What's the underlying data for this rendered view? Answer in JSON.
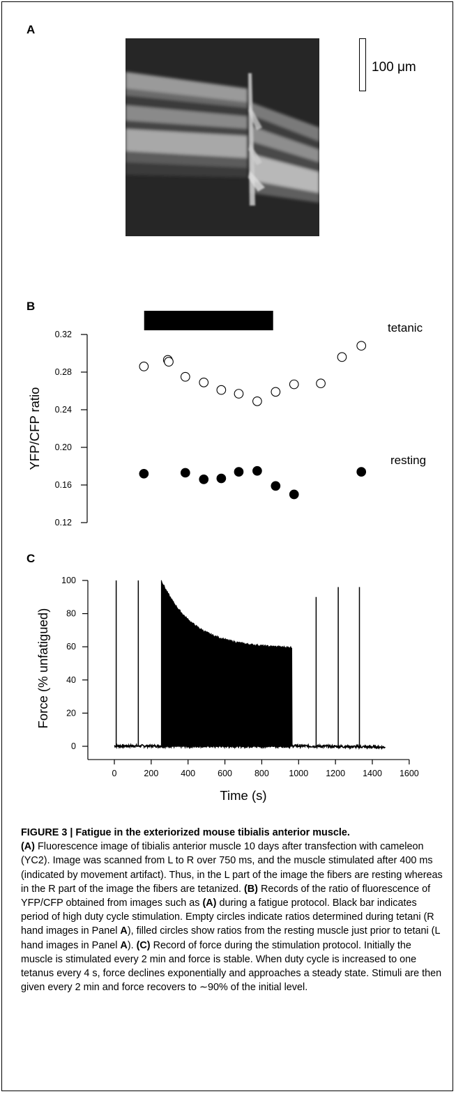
{
  "panels": {
    "a": {
      "letter": "A",
      "scale_bar_label": "100 μm"
    },
    "b": {
      "letter": "B",
      "annotation_tetanic": "tetanic",
      "annotation_resting": "resting"
    },
    "c": {
      "letter": "C"
    }
  },
  "chart_data": [
    {
      "panel": "B",
      "type": "scatter",
      "ylabel": "YFP/CFP ratio",
      "ylim": [
        0.12,
        0.32
      ],
      "yticks": [
        "0.12",
        "0.16",
        "0.20",
        "0.24",
        "0.28",
        "0.32"
      ],
      "stimulation_bar": {
        "x_start": 260,
        "x_end": 960,
        "fill": "#000000"
      },
      "series": [
        {
          "name": "tetanic",
          "marker": "empty-circle",
          "points": [
            [
              130,
              0.286
            ],
            [
              260,
              0.293
            ],
            [
              265,
              0.291
            ],
            [
              355,
              0.275
            ],
            [
              455,
              0.269
            ],
            [
              550,
              0.261
            ],
            [
              645,
              0.257
            ],
            [
              745,
              0.249
            ],
            [
              845,
              0.259
            ],
            [
              945,
              0.267
            ],
            [
              1090,
              0.268
            ],
            [
              1205,
              0.296
            ],
            [
              1310,
              0.308
            ]
          ]
        },
        {
          "name": "resting",
          "marker": "filled-circle",
          "points": [
            [
              130,
              0.172
            ],
            [
              355,
              0.173
            ],
            [
              455,
              0.166
            ],
            [
              550,
              0.167
            ],
            [
              645,
              0.174
            ],
            [
              745,
              0.175
            ],
            [
              845,
              0.159
            ],
            [
              945,
              0.15
            ],
            [
              1310,
              0.174
            ]
          ]
        }
      ]
    },
    {
      "panel": "C",
      "type": "line",
      "xlabel": "Time (s)",
      "ylabel": "Force (% unfatigued)",
      "xlim": [
        -150,
        1600
      ],
      "ylim": [
        -8,
        100
      ],
      "xticks": [
        "0",
        "200",
        "400",
        "600",
        "800",
        "1000",
        "1200",
        "1400",
        "1600"
      ],
      "yticks": [
        "0",
        "20",
        "40",
        "60",
        "80",
        "100"
      ],
      "baseline_start": 0,
      "baseline_end": 1470,
      "tetani_before": [
        {
          "t": 10,
          "force": 100
        },
        {
          "t": 130,
          "force": 100
        }
      ],
      "fatigue_block": {
        "t_start": 255,
        "t_end": 965,
        "force_start": 100,
        "force_end": 60,
        "steady_state": 59,
        "description": "exponential decline under high duty cycle"
      },
      "tetani_after": [
        {
          "t": 1095,
          "force": 90
        },
        {
          "t": 1215,
          "force": 96
        },
        {
          "t": 1330,
          "force": 96
        }
      ]
    }
  ],
  "caption": {
    "title": "FIGURE 3 | Fatigue in the exteriorized mouse tibialis anterior muscle.",
    "a_label": "(A)",
    "a_text": " Fluorescence image of tibialis anterior muscle 10 days after transfection with cameleon (YC2). Image was scanned from L to R over 750 ms, and the muscle stimulated after 400 ms (indicated by movement artifact). Thus, in the L part of the image the fibers are resting whereas in the R part of the image the fibers are tetanized. ",
    "b_label": "(B)",
    "b_text1": " Records of the ratio of fluorescence of YFP/CFP obtained from images such as ",
    "b_ref": "(A)",
    "b_text2": " during a fatigue protocol. Black bar indicates period of high duty cycle stimulation. Empty circles indicate ratios determined during tetani (R hand images in Panel ",
    "b_panel_a1": "A",
    "b_text3": "), filled circles show ratios from the resting muscle just prior to tetani (L hand images in Panel ",
    "b_panel_a2": "A",
    "b_text4": "). ",
    "c_label": "(C)",
    "c_text": " Record of force during the stimulation protocol. Initially the muscle is stimulated every 2 min and force is stable. When duty cycle is increased to one tetanus every 4 s, force declines exponentially and approaches a steady state. Stimuli are then given every 2 min and force recovers to ∼90% of the initial level."
  }
}
